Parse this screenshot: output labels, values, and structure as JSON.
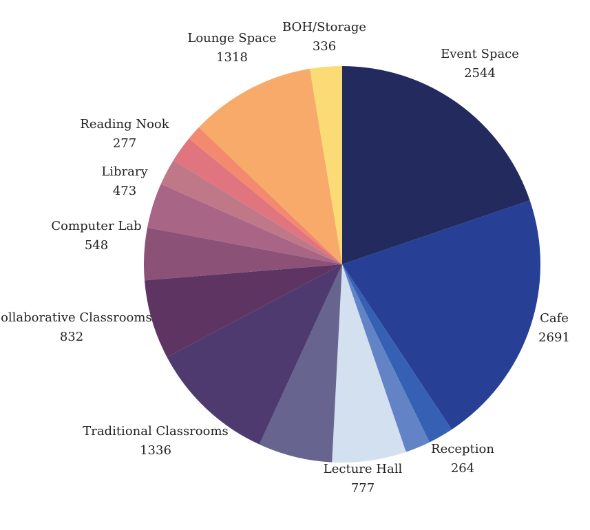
{
  "chart_data": {
    "type": "pie",
    "title": "",
    "start": "12 o'clock",
    "direction": "clockwise",
    "slices": [
      {
        "label": "Event Space",
        "value": 2544,
        "color": "#232a5e"
      },
      {
        "label": "Cafe",
        "value": 2691,
        "color": "#273f95"
      },
      {
        "label": "Reception",
        "value": 264,
        "color": "#3660b3"
      },
      {
        "label": "",
        "value": 264,
        "color": "#6283c6"
      },
      {
        "label": "Lecture Hall",
        "value": 777,
        "color": "#d3e0f0"
      },
      {
        "label": "",
        "value": 777,
        "color": "#67648f"
      },
      {
        "label": "Traditional Classrooms",
        "value": 1336,
        "color": "#4f3a6f"
      },
      {
        "label": "Collaborative Classrooms",
        "value": 832,
        "color": "#5e3462"
      },
      {
        "label": "Computer Lab",
        "value": 548,
        "color": "#8b5176"
      },
      {
        "label": "Library",
        "value": 473,
        "color": "#a86585"
      },
      {
        "label": "",
        "value": 277,
        "color": "#bf7888"
      },
      {
        "label": "Reading Nook",
        "value": 277,
        "color": "#e0747f"
      },
      {
        "label": "",
        "value": 155,
        "color": "#f3896e"
      },
      {
        "label": "Lounge Space",
        "value": 1318,
        "color": "#f7aa69"
      },
      {
        "label": "BOH/Storage",
        "value": 336,
        "color": "#fadb76"
      }
    ]
  }
}
